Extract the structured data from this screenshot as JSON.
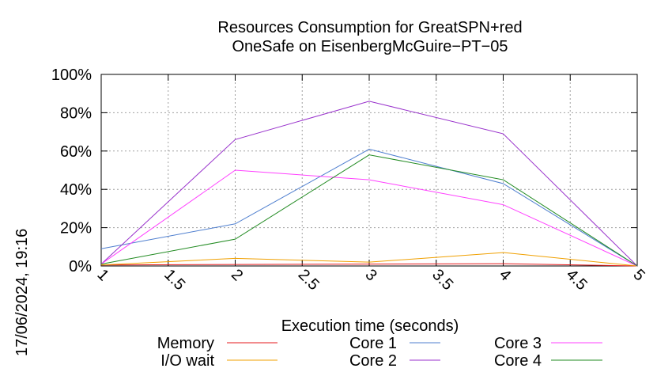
{
  "timestamp": "17/06/2024, 19:16",
  "chart_data": {
    "type": "line",
    "title": [
      "Resources Consumption for GreatSPN+red",
      "OneSafe on EisenbergMcGuire−PT−05"
    ],
    "xlabel": "Execution time (seconds)",
    "ylabel": "",
    "xlim": [
      1,
      5
    ],
    "ylim": [
      0,
      100
    ],
    "x_ticks": [
      "1",
      "1.5",
      "2",
      "2.5",
      "3",
      "3.5",
      "4",
      "4.5",
      "5"
    ],
    "x_tick_values": [
      1,
      1.5,
      2,
      2.5,
      3,
      3.5,
      4,
      4.5,
      5
    ],
    "y_ticks": [
      "0%",
      "20%",
      "40%",
      "60%",
      "80%",
      "100%"
    ],
    "y_tick_values": [
      0,
      20,
      40,
      60,
      80,
      100
    ],
    "grid": true,
    "legend_position": "bottom",
    "series": [
      {
        "name": "Memory",
        "color": "#e41a1c",
        "x": [
          1,
          2,
          3,
          4,
          5
        ],
        "values": [
          0.5,
          0.8,
          1.0,
          1.2,
          0
        ]
      },
      {
        "name": "I/O wait",
        "color": "#f0a000",
        "x": [
          1,
          2,
          3,
          4,
          5
        ],
        "values": [
          0.5,
          4,
          2,
          7,
          0
        ]
      },
      {
        "name": "Core 1",
        "color": "#4f7fcf",
        "x": [
          1,
          2,
          3,
          4,
          5
        ],
        "values": [
          9,
          22,
          61,
          43,
          0
        ]
      },
      {
        "name": "Core 2",
        "color": "#9932cc",
        "x": [
          1,
          2,
          3,
          4,
          5
        ],
        "values": [
          1,
          66,
          86,
          69,
          0
        ]
      },
      {
        "name": "Core 3",
        "color": "#ff40ff",
        "x": [
          1,
          2,
          3,
          4,
          5
        ],
        "values": [
          1,
          50,
          45,
          32,
          0
        ]
      },
      {
        "name": "Core 4",
        "color": "#228b22",
        "x": [
          1,
          2,
          3,
          4,
          5
        ],
        "values": [
          1,
          14,
          58,
          45,
          0
        ]
      }
    ]
  }
}
